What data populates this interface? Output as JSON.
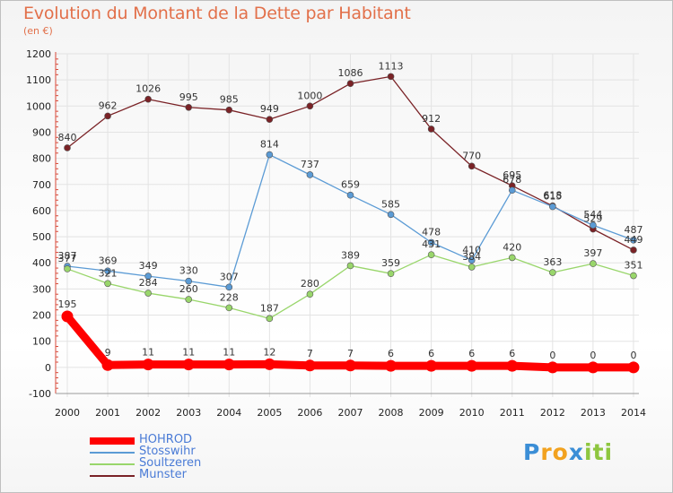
{
  "title": "Evolution du Montant de la Dette par Habitant",
  "subtitle": "(en €)",
  "logo": {
    "text": "Proxiti",
    "letters": [
      "P",
      "r",
      "o",
      "x",
      "i",
      "t",
      "i"
    ],
    "colors": [
      "#3b8ed6",
      "#f2a21f",
      "#f2a21f",
      "#3b8ed6",
      "#8ec63f",
      "#8ec63f",
      "#8ec63f"
    ]
  },
  "chart_data": {
    "type": "line",
    "x": [
      "2000",
      "2001",
      "2002",
      "2003",
      "2004",
      "2005",
      "2006",
      "2007",
      "2008",
      "2009",
      "2010",
      "2011",
      "2012",
      "2013",
      "2014"
    ],
    "ylim": [
      -100,
      1200
    ],
    "yticks": [
      "-100",
      "0",
      "100",
      "200",
      "300",
      "400",
      "500",
      "600",
      "700",
      "800",
      "900",
      "1000",
      "1100",
      "1200"
    ],
    "grid": true,
    "legend_position": "bottom-left",
    "series": [
      {
        "name": "HOHROD",
        "color": "#ff0000",
        "values": [
          195,
          9,
          11,
          11,
          11,
          12,
          7,
          7,
          6,
          6,
          6,
          6,
          0,
          0,
          0
        ],
        "labels": [
          "195",
          "9",
          "11",
          "11",
          "11",
          "12",
          "7",
          "7",
          "6",
          "6",
          "6",
          "6",
          "0",
          "0",
          "0"
        ]
      },
      {
        "name": "Stosswihr",
        "color": "#5b9bd5",
        "values": [
          387,
          369,
          349,
          330,
          307,
          814,
          737,
          659,
          585,
          478,
          410,
          678,
          615,
          544,
          487
        ],
        "labels": [
          "387",
          "369",
          "349",
          "330",
          "307",
          "814",
          "737",
          "659",
          "585",
          "478",
          "410",
          "678",
          "615",
          "544",
          "487"
        ]
      },
      {
        "name": "Soultzeren",
        "color": "#99d66b",
        "values": [
          377,
          321,
          284,
          260,
          228,
          187,
          280,
          389,
          359,
          431,
          384,
          420,
          363,
          397,
          351
        ],
        "labels": [
          "377",
          "321",
          "284",
          "260",
          "228",
          "187",
          "280",
          "389",
          "359",
          "431",
          "384",
          "420",
          "363",
          "397",
          "351"
        ]
      },
      {
        "name": "Munster",
        "color": "#7a2226",
        "values": [
          840,
          962,
          1026,
          995,
          985,
          949,
          1000,
          1086,
          1113,
          912,
          770,
          695,
          618,
          529,
          449
        ],
        "labels": [
          "840",
          "962",
          "1026",
          "995",
          "985",
          "949",
          "1000",
          "1086",
          "1113",
          "912",
          "770",
          "695",
          "618",
          "529",
          "449"
        ]
      }
    ]
  }
}
